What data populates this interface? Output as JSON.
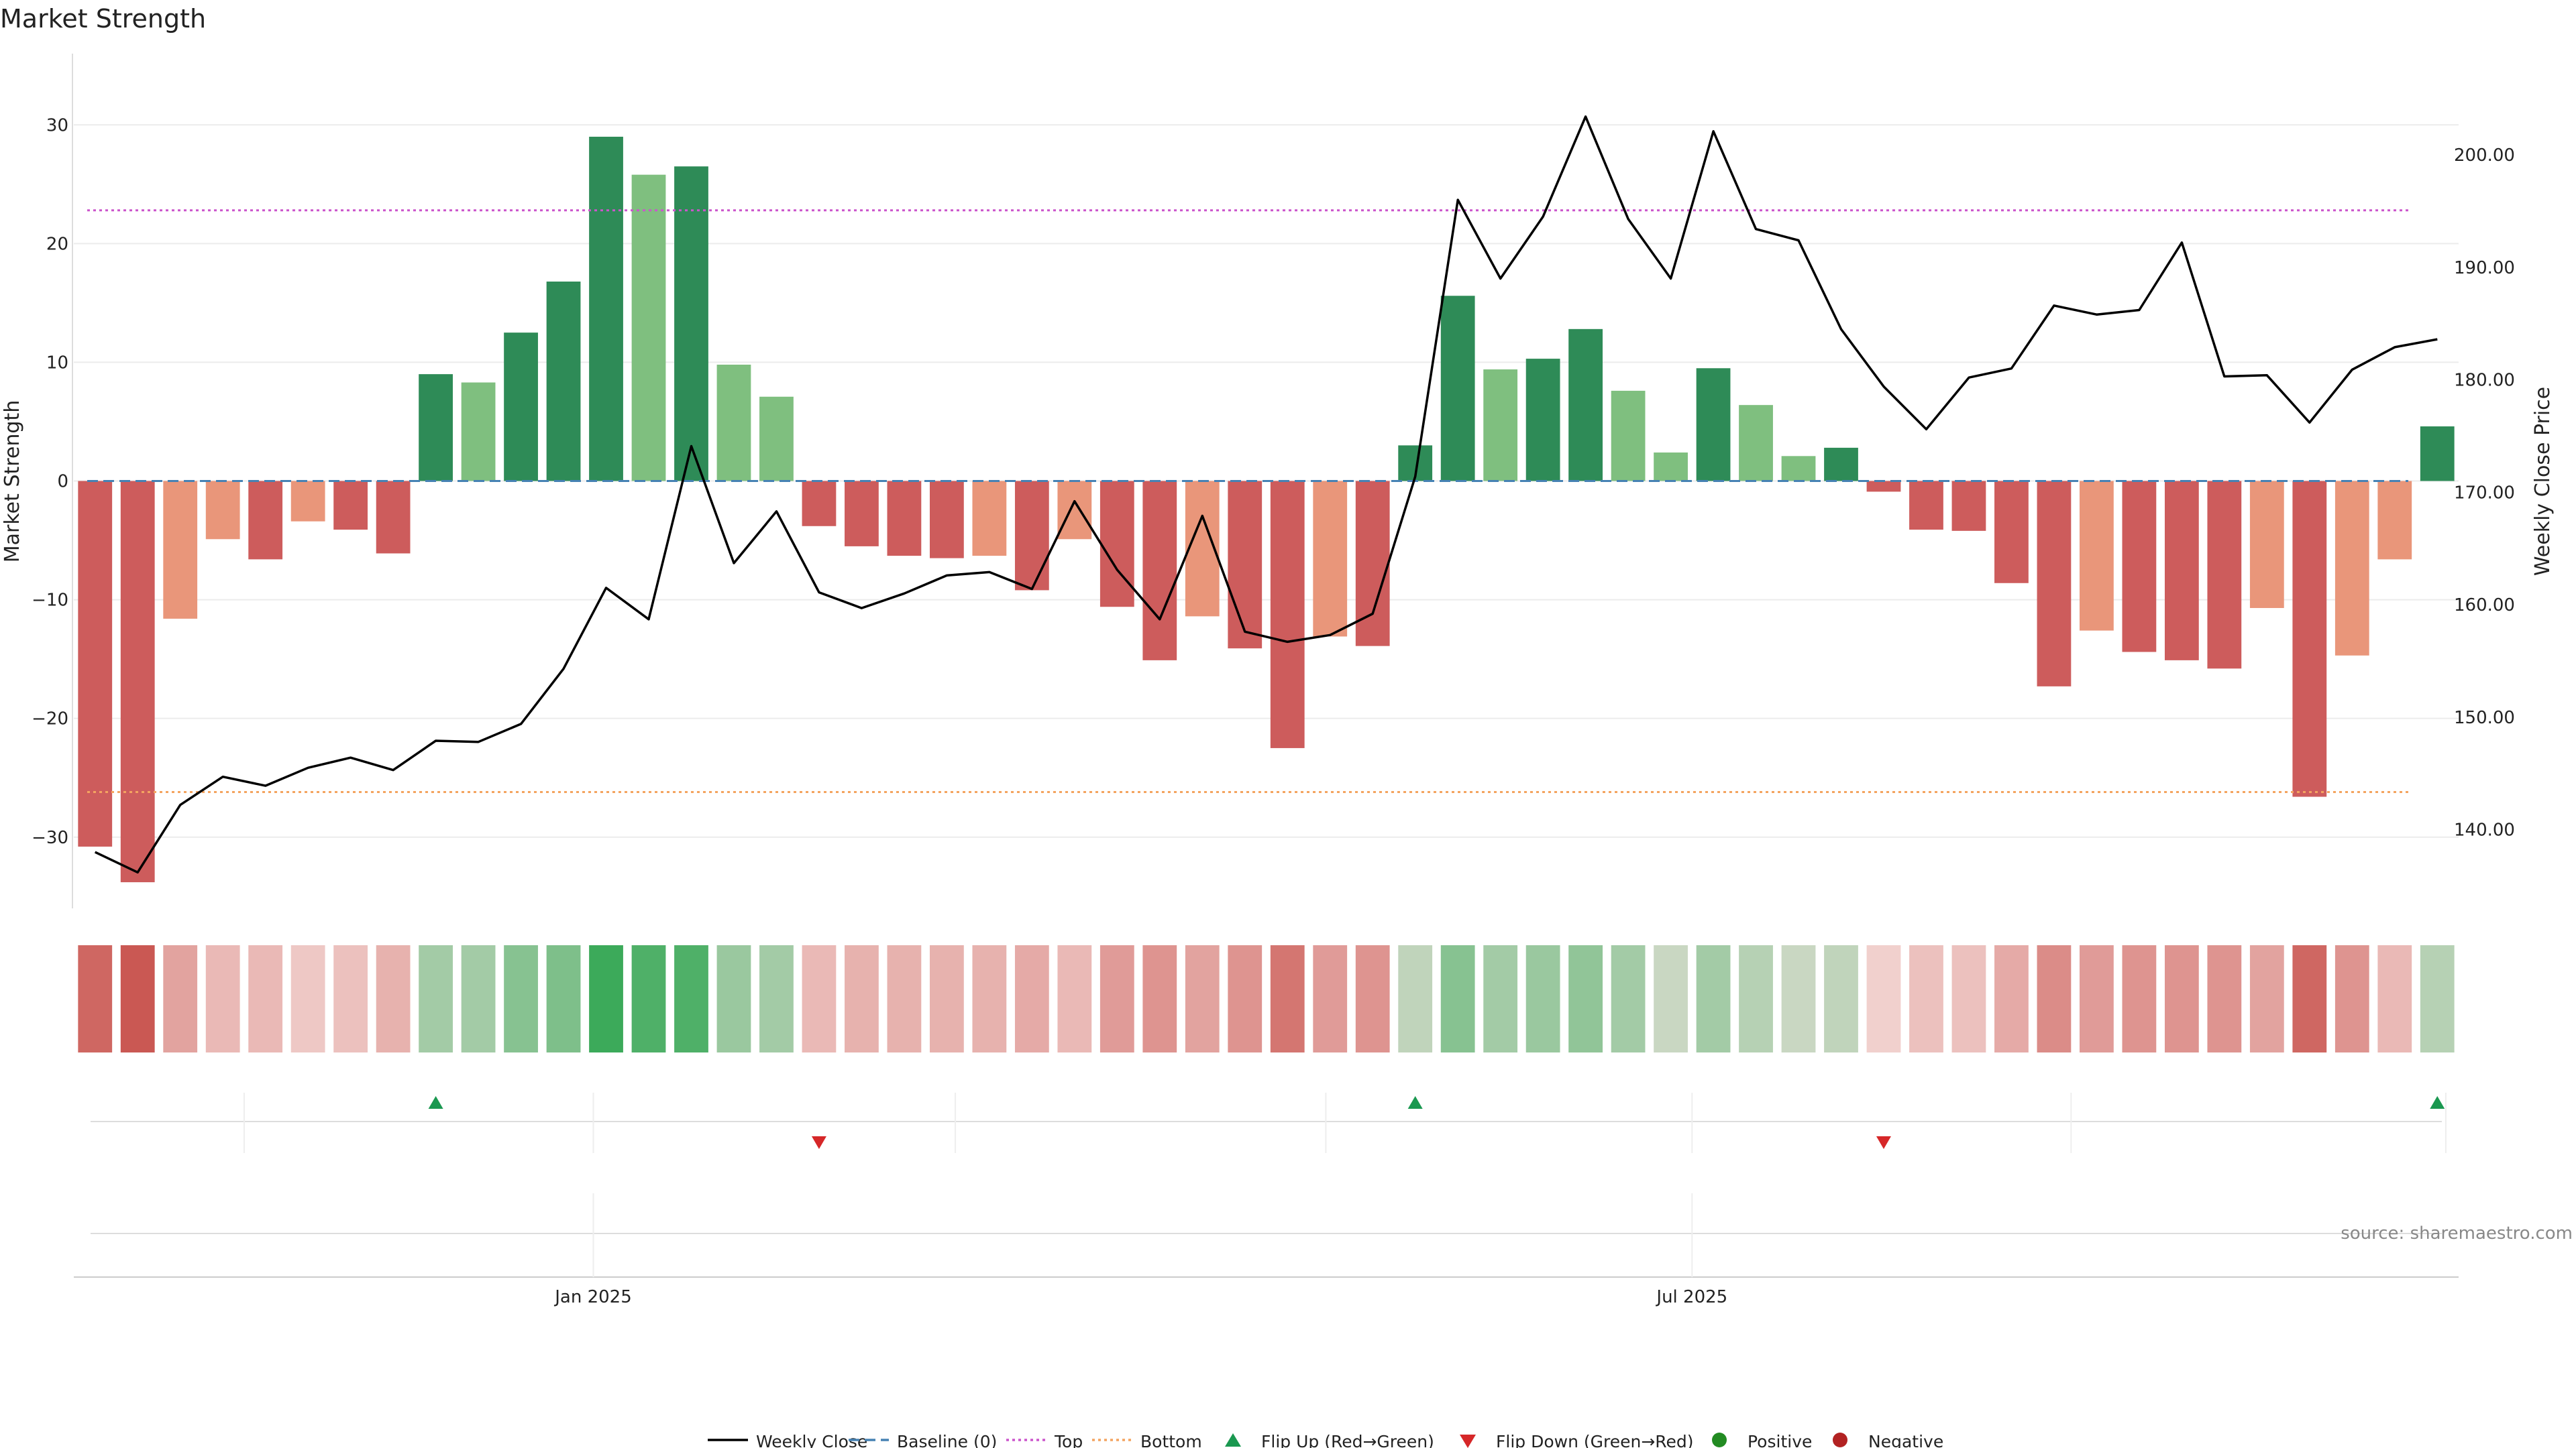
{
  "title": "Market Strength",
  "source": "source: sharemaestro.com",
  "colors": {
    "strong_pos": "#2e8b57",
    "weak_pos": "#7fbf7f",
    "strong_neg": "#cd5c5c",
    "weak_neg": "#e9967a",
    "price": "#000000",
    "baseline": "#4682b4",
    "top": "#cc55cc",
    "bottom": "#f4a460",
    "flip_up": "#1a9850",
    "flip_down": "#d62728",
    "positive": "#228b22",
    "negative": "#b22222"
  },
  "chart_data": {
    "type": "bar",
    "ylabel": "Market Strength",
    "ylabel_right": "Weekly Close Price",
    "ylim": [
      -36,
      36
    ],
    "yticks": [
      -30,
      -20,
      -10,
      0,
      10,
      20,
      30
    ],
    "price_ylim": [
      133,
      209
    ],
    "price_ticks": [
      "140.00",
      "150.00",
      "160.00",
      "170.00",
      "180.00",
      "190.00",
      "200.00"
    ],
    "x_tick_labels": [
      {
        "label": "Jan 2025",
        "index": 11.7
      },
      {
        "label": "Jul 2025",
        "index": 37.5
      }
    ],
    "top_line": 22.8,
    "bottom_line": -26.2,
    "baseline": 0,
    "strength": [
      -30.8,
      -33.8,
      -11.6,
      -4.9,
      -6.6,
      -3.4,
      -4.1,
      -6.1,
      9.0,
      8.3,
      12.5,
      16.8,
      29.0,
      25.8,
      26.5,
      9.8,
      7.1,
      -3.8,
      -5.5,
      -6.3,
      -6.5,
      -6.3,
      -9.2,
      -4.9,
      -10.6,
      -15.1,
      -11.4,
      -14.1,
      -22.5,
      -13.1,
      -13.9,
      3.0,
      15.6,
      9.4,
      10.3,
      12.8,
      7.6,
      2.4,
      9.5,
      6.4,
      2.1,
      2.8,
      -0.9,
      -4.1,
      -4.2,
      -8.6,
      -17.3,
      -12.6,
      -14.4,
      -15.1,
      -15.8,
      -10.7,
      -26.6,
      -14.7,
      -6.6,
      4.6
    ],
    "strength_class": [
      "sn",
      "sn",
      "wn",
      "wn",
      "sn",
      "wn",
      "sn",
      "sn",
      "sp",
      "wp",
      "sp",
      "sp",
      "sp",
      "wp",
      "sp",
      "wp",
      "wp",
      "sn",
      "sn",
      "sn",
      "sn",
      "wn",
      "sn",
      "wn",
      "sn",
      "sn",
      "wn",
      "sn",
      "sn",
      "wn",
      "sn",
      "sp",
      "sp",
      "wp",
      "sp",
      "sp",
      "wp",
      "wp",
      "sp",
      "wp",
      "wp",
      "sp",
      "sn",
      "sn",
      "sn",
      "sn",
      "sn",
      "wn",
      "sn",
      "sn",
      "sn",
      "wn",
      "sn",
      "wn",
      "wn",
      "sp"
    ],
    "weekly_close": [
      138.0,
      136.2,
      142.2,
      144.7,
      143.9,
      145.5,
      146.4,
      145.3,
      147.9,
      147.8,
      149.4,
      154.3,
      161.5,
      158.7,
      174.1,
      163.7,
      168.3,
      161.1,
      159.7,
      161.0,
      162.6,
      162.9,
      161.4,
      169.2,
      163.1,
      158.7,
      167.9,
      157.6,
      156.7,
      157.3,
      159.2,
      171.4,
      196.0,
      189.0,
      194.5,
      203.4,
      194.3,
      189.0,
      202.1,
      193.4,
      192.4,
      184.5,
      179.4,
      175.6,
      180.2,
      181.0,
      186.6,
      185.8,
      186.2,
      192.2,
      180.3,
      180.4,
      176.2,
      180.9,
      182.9,
      183.6
    ],
    "heat_intensity": [
      0.85,
      0.95,
      0.45,
      0.3,
      0.3,
      0.2,
      0.25,
      0.35,
      0.45,
      0.45,
      0.6,
      0.65,
      1.0,
      0.9,
      0.9,
      0.5,
      0.45,
      0.3,
      0.35,
      0.35,
      0.35,
      0.35,
      0.4,
      0.3,
      0.5,
      0.55,
      0.45,
      0.55,
      0.75,
      0.5,
      0.55,
      0.3,
      0.6,
      0.45,
      0.5,
      0.55,
      0.45,
      0.25,
      0.45,
      0.35,
      0.25,
      0.3,
      0.15,
      0.25,
      0.25,
      0.4,
      0.6,
      0.5,
      0.55,
      0.55,
      0.55,
      0.45,
      0.85,
      0.55,
      0.3,
      0.35
    ],
    "flip_up_indices": [
      8,
      31,
      55
    ],
    "flip_down_indices": [
      17,
      42
    ],
    "legend": [
      {
        "label": "Weekly Close",
        "kind": "line",
        "color": "price"
      },
      {
        "label": "Baseline (0)",
        "kind": "dashed",
        "color": "baseline"
      },
      {
        "label": "Top",
        "kind": "dotted",
        "color": "top"
      },
      {
        "label": "Bottom",
        "kind": "dotted",
        "color": "bottom"
      },
      {
        "label": "Flip Up (Red→Green)",
        "kind": "tri-up",
        "color": "flip_up"
      },
      {
        "label": "Flip Down (Green→Red)",
        "kind": "tri-down",
        "color": "flip_down"
      },
      {
        "label": "Positive",
        "kind": "dot",
        "color": "positive"
      },
      {
        "label": "Negative",
        "kind": "dot",
        "color": "negative"
      }
    ]
  }
}
